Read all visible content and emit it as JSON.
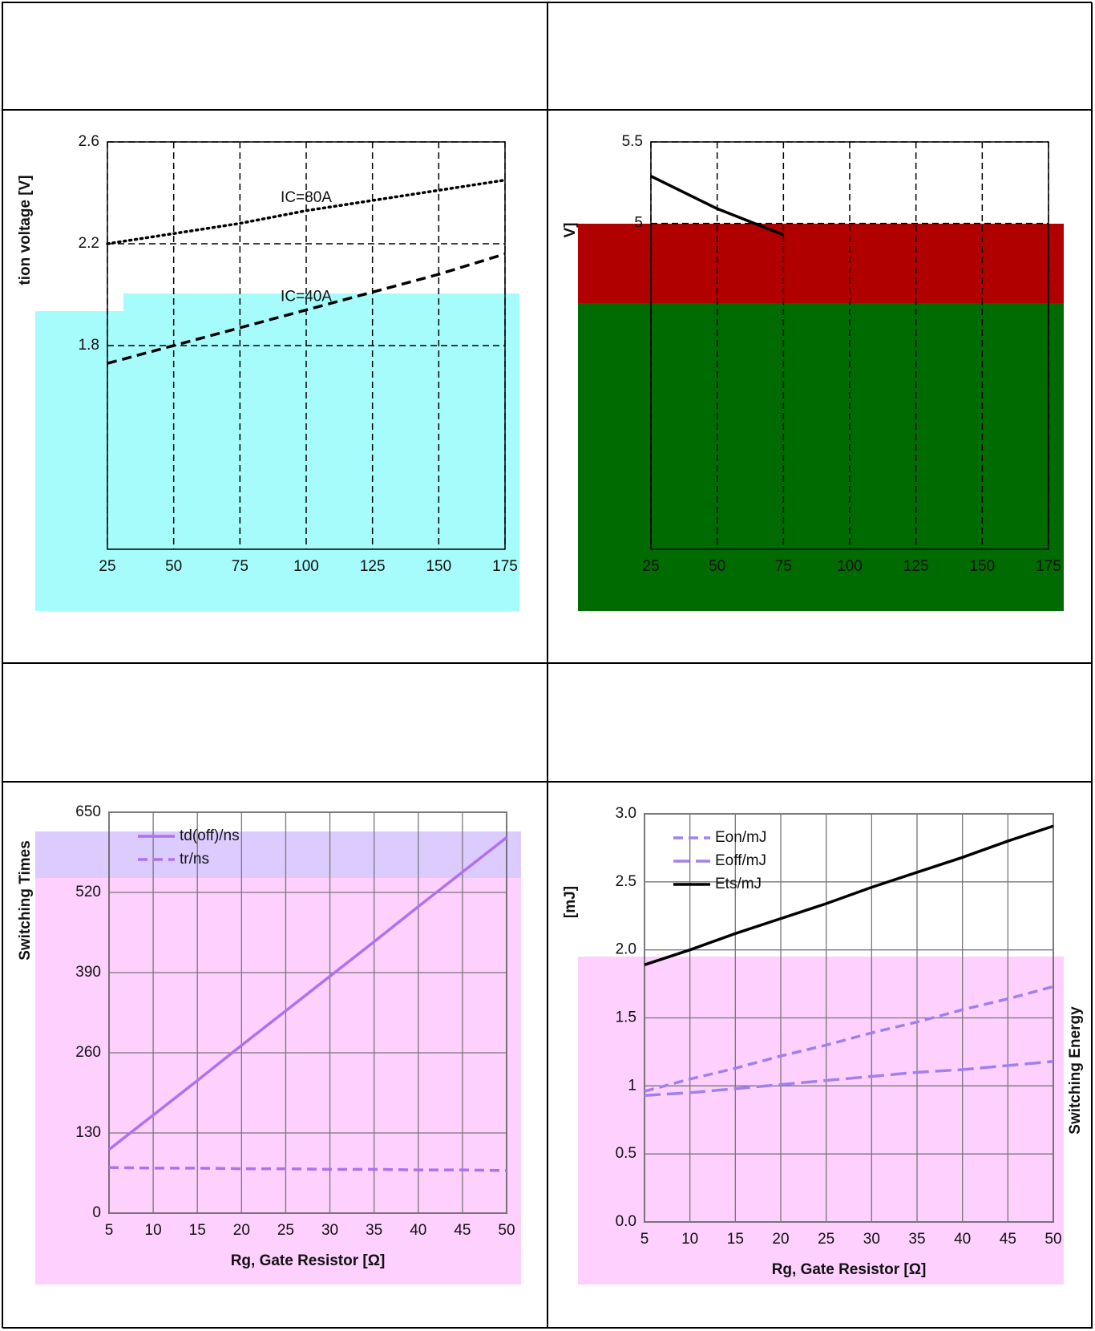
{
  "chart_data": [
    {
      "type": "line",
      "y_label": "tion voltage [V]",
      "grid": "dashed",
      "x": [
        25,
        50,
        75,
        100,
        125,
        150,
        175
      ],
      "xlim": [
        25,
        175
      ],
      "xticks": [
        25,
        50,
        75,
        100,
        125,
        150,
        175
      ],
      "ylim": [
        1.0,
        2.6
      ],
      "yticks": [
        1.8,
        2.2,
        2.6
      ],
      "series": [
        {
          "color": "#000000",
          "dash": "dotted",
          "values": [
            2.2,
            2.24,
            2.28,
            2.33,
            2.37,
            2.41,
            2.45
          ]
        },
        {
          "color": "#000000",
          "dash": "dashed",
          "values": [
            1.73,
            1.8,
            1.87,
            1.94,
            2.01,
            2.08,
            2.16
          ]
        }
      ],
      "annotations": [
        {
          "text": "IC=80A",
          "x": 100,
          "y": 2.38
        },
        {
          "text": "IC=40A",
          "x": 100,
          "y": 1.99
        }
      ]
    },
    {
      "type": "line",
      "y_label": "V]",
      "grid": "dashed",
      "x": [
        25,
        50,
        75
      ],
      "xlim": [
        25,
        175
      ],
      "xticks": [
        25,
        50,
        75,
        100,
        125,
        150,
        175
      ],
      "ylim": [
        3.0,
        5.5
      ],
      "yticks": [
        5,
        5.5
      ],
      "series": [
        {
          "color": "#000000",
          "dash": "solid",
          "values": [
            5.29,
            5.09,
            4.93
          ]
        }
      ]
    },
    {
      "type": "line",
      "y_label": "Switching Times",
      "x_label": "Rg, Gate Resistor [Ω]",
      "grid": "solid",
      "x": [
        5,
        10,
        15,
        20,
        25,
        30,
        35,
        40,
        45,
        50
      ],
      "xlim": [
        5,
        50
      ],
      "xticks": [
        5,
        10,
        15,
        20,
        25,
        30,
        35,
        40,
        45,
        50
      ],
      "ylim": [
        0,
        650
      ],
      "yticks": [
        0,
        130,
        260,
        390,
        520,
        650
      ],
      "series": [
        {
          "name": "td(off)/ns",
          "color": "#b070f0",
          "dash": "solid",
          "values": [
            103,
            159,
            215,
            272,
            328,
            384,
            440,
            497,
            553,
            609
          ]
        },
        {
          "name": "tr/ns",
          "color": "#b070f0",
          "dash": "dashed",
          "values": [
            74,
            73,
            73,
            72,
            72,
            71,
            71,
            70,
            70,
            69
          ]
        }
      ]
    },
    {
      "type": "line",
      "y_label": "[mJ]",
      "y2_label": "Switching Energy",
      "x_label": "Rg, Gate Resistor [Ω]",
      "grid": "solid",
      "x": [
        5,
        10,
        15,
        20,
        25,
        30,
        35,
        40,
        45,
        50
      ],
      "xlim": [
        5,
        50
      ],
      "xticks": [
        5,
        10,
        15,
        20,
        25,
        30,
        35,
        40,
        45,
        50
      ],
      "ylim": [
        0,
        3.0
      ],
      "yticks": [
        {
          "value": 0,
          "label": "0.0"
        },
        0.5,
        1.0,
        1.5,
        {
          "value": 2,
          "label": "2.0"
        },
        2.5,
        {
          "value": 3,
          "label": "3.0"
        }
      ],
      "series": [
        {
          "name": "Eon/mJ",
          "color": "#a080f0",
          "dash": "dashed",
          "values": [
            0.96,
            1.05,
            1.13,
            1.22,
            1.3,
            1.39,
            1.47,
            1.56,
            1.64,
            1.73
          ]
        },
        {
          "name": "Eoff/mJ",
          "color": "#a080f0",
          "dash": "longdash",
          "values": [
            0.93,
            0.95,
            0.98,
            1.01,
            1.04,
            1.07,
            1.1,
            1.12,
            1.15,
            1.18
          ]
        },
        {
          "name": "Ets/mJ",
          "color": "#000000",
          "dash": "solid",
          "values": [
            1.89,
            2.0,
            2.12,
            2.23,
            2.34,
            2.46,
            2.57,
            2.68,
            2.8,
            2.91
          ]
        }
      ]
    }
  ]
}
